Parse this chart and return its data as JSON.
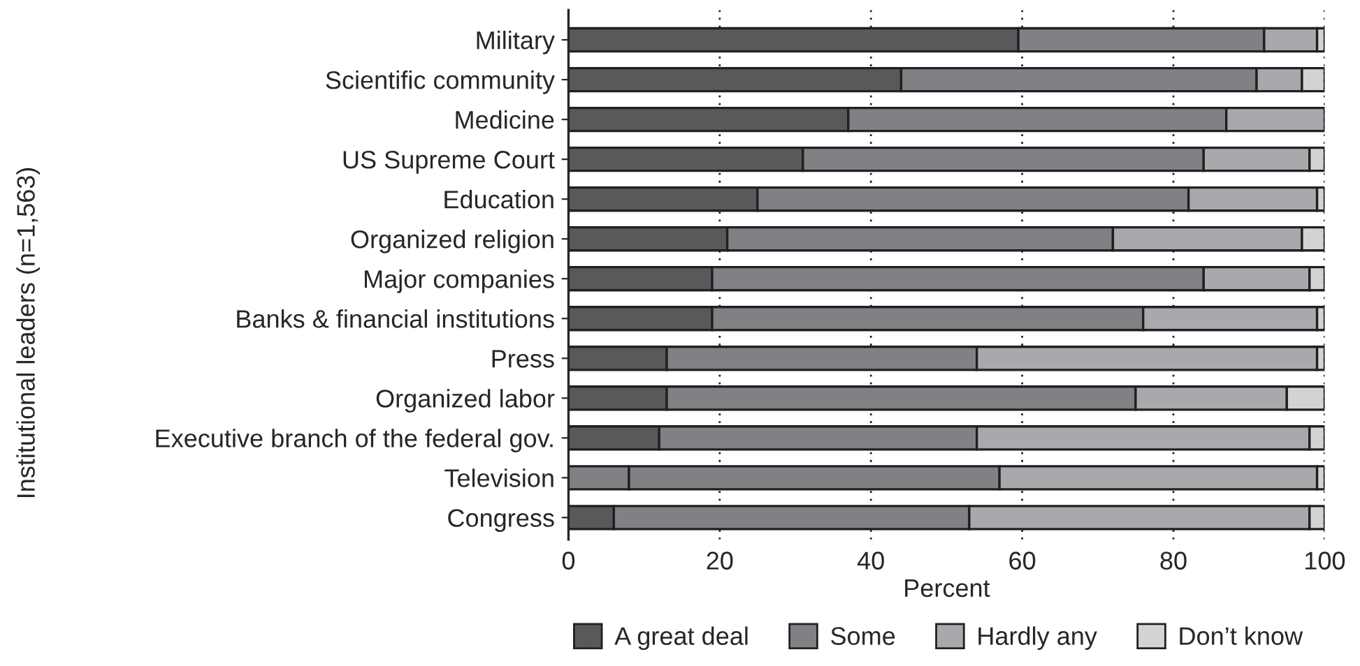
{
  "chart_data": {
    "type": "bar",
    "orientation": "horizontal",
    "stacked": true,
    "categories": [
      "Military",
      "Scientific community",
      "Medicine",
      "US Supreme Court",
      "Education",
      "Organized religion",
      "Major companies",
      "Banks & financial institutions",
      "Press",
      "Organized labor",
      "Executive branch of the federal gov.",
      "Television",
      "Congress"
    ],
    "series": [
      {
        "name": "A great deal",
        "color": "#58595b",
        "colors": [
          "#58595b",
          "#58595b",
          "#58595b",
          "#58595b",
          "#58595b",
          "#58595b",
          "#58595b",
          "#58595b",
          "#58595b",
          "#58595b",
          "#58595b",
          "#808184",
          "#58595b"
        ],
        "values": [
          59.5,
          44,
          37,
          31,
          25,
          21,
          19,
          19,
          13,
          13,
          12,
          8,
          6
        ]
      },
      {
        "name": "Some",
        "color": "#808184",
        "values": [
          32.5,
          47,
          50,
          53,
          57,
          51,
          65,
          57,
          41,
          62,
          42,
          49,
          47
        ]
      },
      {
        "name": "Hardly any",
        "color": "#a7a9ac",
        "values": [
          7,
          6,
          13,
          14,
          17,
          25,
          14,
          23,
          45,
          20,
          44,
          42,
          45
        ]
      },
      {
        "name": "Don’t know",
        "color": "#d1d3d4",
        "values": [
          1,
          3,
          null,
          2,
          1,
          3,
          2,
          1,
          1,
          5,
          2,
          1,
          2
        ]
      }
    ],
    "xlabel": "Percent",
    "ylabel": "Institutional leaders (n=1,563)",
    "xlim": [
      0,
      100
    ],
    "xticks": [
      0,
      20,
      40,
      60,
      80,
      100
    ],
    "grid": "x",
    "legend": "bottom"
  }
}
